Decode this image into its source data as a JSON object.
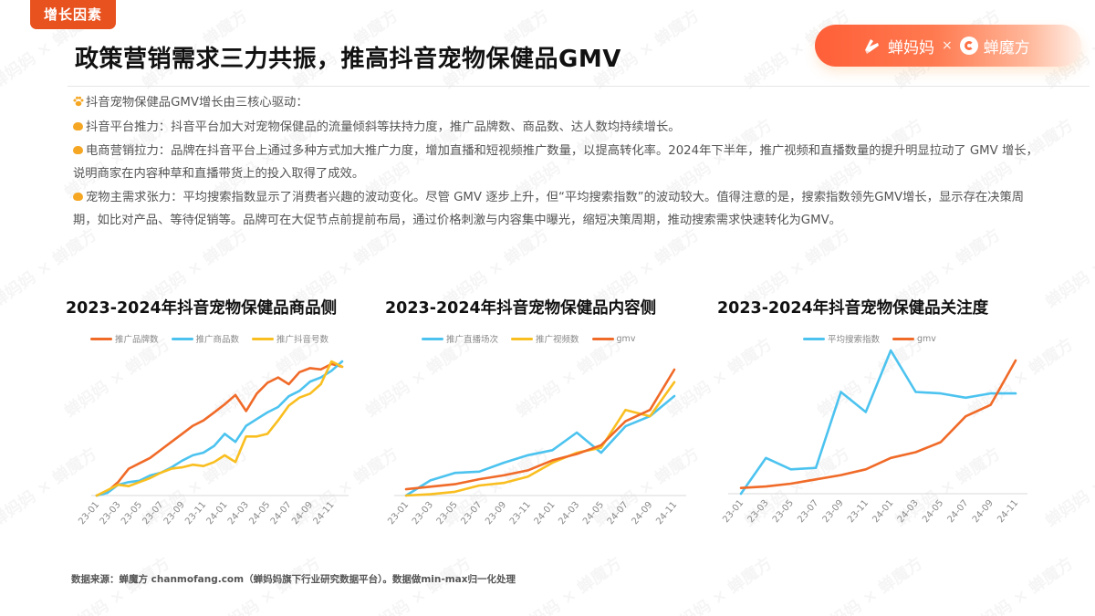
{
  "tag": "增长因素",
  "title": "政策营销需求三力共振，推高抖音宠物保健品GMV",
  "brand": {
    "left": "蝉妈妈",
    "separator": "×",
    "right": "蝉魔方"
  },
  "intro": "抖音宠物保健品GMV增长由三核心驱动：",
  "points": [
    "抖音平台推力：抖音平台加大对宠物保健品的流量倾斜等扶持力度，推广品牌数、商品数、达人数均持续增长。",
    "电商营销拉力：品牌在抖音平台上通过多种方式加大推广力度，增加直播和短视频推广数量，以提高转化率。2024年下半年，推广视频和直播数量的提升明显拉动了 GMV 增长，说明商家在内容种草和直播带货上的投入取得了成效。",
    "宠物主需求张力：平均搜索指数显示了消费者兴趣的波动变化。尽管 GMV 逐步上升，但“平均搜索指数”的波动较大。值得注意的是，搜索指数领先GMV增长，显示存在决策周期，如比对产品、等待促销等。品牌可在大促节点前提前布局，通过价格刺激与内容集中曝光，缩短决策周期，推动搜索需求快速转化为GMV。"
  ],
  "footer": "数据来源：蝉魔方 chanmofang.com（蝉妈妈旗下行业研究数据平台）。数据做min-max归一化处理",
  "watermark": "蝉妈妈 × 蝉魔方",
  "colors": {
    "orange": "#f06a28",
    "blue": "#4cc3ef",
    "yellow": "#f9be1f",
    "tag": "#e8521f"
  },
  "chart_data": [
    {
      "type": "line",
      "title": "2023-2024年抖音宠物保健品商品侧",
      "xlabel": "",
      "ylabel": "",
      "ylim": [
        0,
        1
      ],
      "grid": false,
      "legend_position": "top",
      "x": [
        "23-01",
        "23-02",
        "23-03",
        "23-04",
        "23-05",
        "23-06",
        "23-07",
        "23-08",
        "23-09",
        "23-10",
        "23-11",
        "23-12",
        "24-01",
        "24-02",
        "24-03",
        "24-04",
        "24-05",
        "24-06",
        "24-07",
        "24-08",
        "24-09",
        "24-10",
        "24-11",
        "24-12"
      ],
      "tick_labels": [
        "23-01",
        "23-03",
        "23-05",
        "23-07",
        "23-09",
        "23-11",
        "24-01",
        "24-03",
        "24-05",
        "24-07",
        "24-09",
        "24-11"
      ],
      "series": [
        {
          "name": "推广品牌数",
          "color": "#f06a28",
          "values": [
            0,
            0.03,
            0.1,
            0.2,
            0.24,
            0.28,
            0.34,
            0.4,
            0.46,
            0.52,
            0.56,
            0.62,
            0.68,
            0.75,
            0.63,
            0.76,
            0.84,
            0.88,
            0.83,
            0.92,
            0.95,
            0.94,
            0.98,
            0.96
          ]
        },
        {
          "name": "推广商品数",
          "color": "#4cc3ef",
          "values": [
            0,
            0.02,
            0.08,
            0.1,
            0.11,
            0.15,
            0.17,
            0.21,
            0.26,
            0.3,
            0.32,
            0.37,
            0.46,
            0.4,
            0.52,
            0.57,
            0.62,
            0.66,
            0.74,
            0.78,
            0.85,
            0.88,
            0.93,
            1.0
          ]
        },
        {
          "name": "推广抖音号数",
          "color": "#f9be1f",
          "values": [
            0,
            0.04,
            0.08,
            0.07,
            0.1,
            0.13,
            0.17,
            0.2,
            0.21,
            0.23,
            0.22,
            0.25,
            0.3,
            0.25,
            0.44,
            0.44,
            0.46,
            0.56,
            0.67,
            0.73,
            0.76,
            0.83,
            1.0,
            0.96
          ]
        }
      ]
    },
    {
      "type": "line",
      "title": "2023-2024年抖音宠物保健品内容侧",
      "xlabel": "",
      "ylabel": "",
      "ylim": [
        0,
        1
      ],
      "grid": false,
      "legend_position": "top",
      "x": [
        "23-01",
        "23-03",
        "23-05",
        "23-07",
        "23-09",
        "23-11",
        "24-01",
        "24-03",
        "24-05",
        "24-07",
        "24-09",
        "24-11"
      ],
      "tick_labels": [
        "23-01",
        "23-03",
        "23-05",
        "23-07",
        "23-09",
        "23-11",
        "24-01",
        "24-03",
        "24-05",
        "24-07",
        "24-09",
        "24-11"
      ],
      "series": [
        {
          "name": "推广直播场次",
          "color": "#4cc3ef",
          "values": [
            0,
            0.12,
            0.18,
            0.19,
            0.26,
            0.32,
            0.36,
            0.5,
            0.34,
            0.55,
            0.63,
            0.79
          ]
        },
        {
          "name": "推广视频数",
          "color": "#f9be1f",
          "values": [
            0,
            0.01,
            0.03,
            0.08,
            0.1,
            0.15,
            0.26,
            0.34,
            0.38,
            0.68,
            0.63,
            0.9
          ]
        },
        {
          "name": "gmv",
          "color": "#f06a28",
          "values": [
            0.05,
            0.07,
            0.09,
            0.13,
            0.16,
            0.2,
            0.28,
            0.33,
            0.4,
            0.59,
            0.68,
            1.0
          ]
        }
      ]
    },
    {
      "type": "line",
      "title": "2023-2024年抖音宠物保健品关注度",
      "xlabel": "",
      "ylabel": "",
      "ylim": [
        0,
        1
      ],
      "grid": false,
      "legend_position": "top",
      "x": [
        "23-01",
        "23-03",
        "23-05",
        "23-07",
        "23-09",
        "23-11",
        "24-01",
        "24-03",
        "24-05",
        "24-07",
        "24-09",
        "24-11"
      ],
      "tick_labels": [
        "23-01",
        "23-03",
        "23-05",
        "23-07",
        "23-09",
        "23-11",
        "24-01",
        "24-03",
        "24-05",
        "24-07",
        "24-09",
        "24-11"
      ],
      "series": [
        {
          "name": "平均搜索指数",
          "color": "#4cc3ef",
          "values": [
            0,
            0.25,
            0.17,
            0.18,
            0.71,
            0.57,
            1.0,
            0.71,
            0.7,
            0.67,
            0.7,
            0.7
          ]
        },
        {
          "name": "gmv",
          "color": "#f06a28",
          "values": [
            0.04,
            0.05,
            0.07,
            0.1,
            0.13,
            0.17,
            0.25,
            0.29,
            0.36,
            0.54,
            0.62,
            0.93
          ]
        }
      ]
    }
  ]
}
